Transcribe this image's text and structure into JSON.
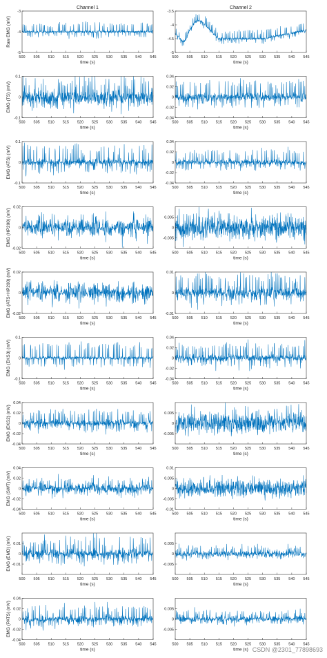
{
  "columns": [
    "Channel 1",
    "Channel 2"
  ],
  "watermark": "CSDN @2301_77898693",
  "style": {
    "signal_color": "#0072bd",
    "axis_color": "#333333",
    "text_color": "#222222"
  },
  "chart_data": [
    {
      "type": "line",
      "row": 0,
      "col": 0,
      "title": "Channel 1",
      "ylabel": "Raw EMG (mV)",
      "xlabel": "time (s)",
      "xlim": [
        500,
        545
      ],
      "ylim": [
        -5,
        -3
      ],
      "yticks": [
        -5,
        -4,
        -3
      ],
      "xticks": [
        500,
        505,
        510,
        515,
        520,
        525,
        530,
        535,
        540,
        545
      ],
      "signal": {
        "kind": "raw",
        "baseline": -4,
        "noise": 0.06,
        "spike": 0.35,
        "env": "flat",
        "spikes_per_sec": 1.9
      }
    },
    {
      "type": "line",
      "row": 0,
      "col": 1,
      "title": "Channel 2",
      "ylabel": "",
      "xlabel": "time (s)",
      "xlim": [
        500,
        545
      ],
      "ylim": [
        -5,
        -3.5
      ],
      "yticks": [
        -5,
        -4.5,
        -4,
        -3.5
      ],
      "xticks": [
        500,
        505,
        510,
        515,
        520,
        525,
        530,
        535,
        540,
        545
      ],
      "signal": {
        "kind": "raw2",
        "baseline": -4.5,
        "noise": 0.04,
        "spike": 0.25,
        "env": "flat",
        "spikes_per_sec": 1.9
      }
    },
    {
      "type": "line",
      "row": 1,
      "col": 0,
      "ylabel": "EMG (TS) (mV)",
      "xlabel": "time (s)",
      "xlim": [
        500,
        545
      ],
      "ylim": [
        -0.1,
        0.1
      ],
      "yticks": [
        -0.1,
        0,
        0.1
      ],
      "xticks": [
        500,
        505,
        510,
        515,
        520,
        525,
        530,
        535,
        540,
        545
      ],
      "signal": {
        "kind": "emg",
        "noise": 0.035,
        "spike": 0.07,
        "env": "flat",
        "spikes_per_sec": 1.9
      }
    },
    {
      "type": "line",
      "row": 1,
      "col": 1,
      "ylabel": "",
      "xlabel": "time (s)",
      "xlim": [
        500,
        545
      ],
      "ylim": [
        -0.04,
        0.04
      ],
      "yticks": [
        -0.04,
        -0.02,
        0,
        0.02,
        0.04
      ],
      "xticks": [
        500,
        505,
        510,
        515,
        520,
        525,
        530,
        535,
        540,
        545
      ],
      "signal": {
        "kind": "emg",
        "noise": 0.007,
        "spike": 0.025,
        "env": "flat",
        "spikes_per_sec": 1.9
      }
    },
    {
      "type": "line",
      "row": 2,
      "col": 0,
      "ylabel": "EMG (ATS) (mV)",
      "xlabel": "time (s)",
      "xlim": [
        500,
        545
      ],
      "ylim": [
        -0.1,
        0.1
      ],
      "yticks": [
        -0.1,
        0,
        0.1
      ],
      "xticks": [
        500,
        505,
        510,
        515,
        520,
        525,
        530,
        535,
        540,
        545
      ],
      "signal": {
        "kind": "emg",
        "noise": 0.025,
        "spike": 0.07,
        "env": "burst",
        "spikes_per_sec": 1.9
      }
    },
    {
      "type": "line",
      "row": 2,
      "col": 1,
      "ylabel": "",
      "xlabel": "time (s)",
      "xlim": [
        500,
        545
      ],
      "ylim": [
        -0.04,
        0.04
      ],
      "yticks": [
        -0.04,
        -0.02,
        0,
        0.02,
        0.04
      ],
      "xticks": [
        500,
        505,
        510,
        515,
        520,
        525,
        530,
        535,
        540,
        545
      ],
      "signal": {
        "kind": "emg",
        "noise": 0.005,
        "spike": 0.018,
        "env": "flat",
        "spikes_per_sec": 1.9
      }
    },
    {
      "type": "line",
      "row": 3,
      "col": 0,
      "ylabel": "EMG (HP200) (mV)",
      "xlabel": "time (s)",
      "xlim": [
        500,
        545
      ],
      "ylim": [
        -0.02,
        0.02
      ],
      "yticks": [
        -0.02,
        0,
        0.02
      ],
      "xticks": [
        500,
        505,
        510,
        515,
        520,
        525,
        530,
        535,
        540,
        545
      ],
      "signal": {
        "kind": "emg",
        "noise": 0.011,
        "spike": 0.004,
        "env": "burst",
        "spikes_per_sec": 1.9
      }
    },
    {
      "type": "line",
      "row": 3,
      "col": 1,
      "ylabel": "",
      "xlabel": "time (s)",
      "xlim": [
        500,
        545
      ],
      "ylim": [
        -0.01,
        0.01
      ],
      "yticks": [
        -0.005,
        0,
        0.005
      ],
      "xticks": [
        500,
        505,
        510,
        515,
        520,
        525,
        530,
        535,
        540,
        545
      ],
      "signal": {
        "kind": "emg",
        "noise": 0.0045,
        "spike": 0.004,
        "env": "flat",
        "spikes_per_sec": 1.9
      }
    },
    {
      "type": "line",
      "row": 4,
      "col": 0,
      "ylabel": "EMG (ATS+HP200) (mV)",
      "xlabel": "time (s)",
      "xlim": [
        500,
        545
      ],
      "ylim": [
        -0.02,
        0.02
      ],
      "yticks": [
        -0.02,
        0,
        0.02
      ],
      "xticks": [
        500,
        505,
        510,
        515,
        520,
        525,
        530,
        535,
        540,
        545
      ],
      "signal": {
        "kind": "emg",
        "noise": 0.011,
        "spike": 0.004,
        "env": "burst",
        "spikes_per_sec": 1.9
      }
    },
    {
      "type": "line",
      "row": 4,
      "col": 1,
      "ylabel": "",
      "xlabel": "time (s)",
      "xlim": [
        500,
        545
      ],
      "ylim": [
        -0.01,
        0.01
      ],
      "yticks": [
        -0.01,
        0,
        0.01
      ],
      "xticks": [
        500,
        505,
        510,
        515,
        520,
        525,
        530,
        535,
        540,
        545
      ],
      "signal": {
        "kind": "emg",
        "noise": 0.0025,
        "spike": 0.007,
        "env": "flat",
        "spikes_per_sec": 1.9
      }
    },
    {
      "type": "line",
      "row": 5,
      "col": 0,
      "ylabel": "EMG (EKS3) (mV)",
      "xlabel": "time (s)",
      "xlim": [
        500,
        545
      ],
      "ylim": [
        -0.1,
        0.1
      ],
      "yticks": [
        -0.1,
        0,
        0.1
      ],
      "xticks": [
        500,
        505,
        510,
        515,
        520,
        525,
        530,
        535,
        540,
        545
      ],
      "signal": {
        "kind": "emg",
        "noise": 0.007,
        "spike": 0.06,
        "env": "flat",
        "spikes_per_sec": 1.9
      }
    },
    {
      "type": "line",
      "row": 5,
      "col": 1,
      "ylabel": "",
      "xlabel": "time (s)",
      "xlim": [
        500,
        545
      ],
      "ylim": [
        -0.04,
        0.04
      ],
      "yticks": [
        -0.04,
        -0.02,
        0,
        0.02,
        0.04
      ],
      "xticks": [
        500,
        505,
        510,
        515,
        520,
        525,
        530,
        535,
        540,
        545
      ],
      "signal": {
        "kind": "emg",
        "noise": 0.006,
        "spike": 0.022,
        "env": "flat",
        "spikes_per_sec": 1.9
      }
    },
    {
      "type": "line",
      "row": 6,
      "col": 0,
      "ylabel": "EMG (EKS2) (mV)",
      "xlabel": "time (s)",
      "xlim": [
        500,
        545
      ],
      "ylim": [
        -0.04,
        0.04
      ],
      "yticks": [
        -0.04,
        -0.02,
        0,
        0.02,
        0.04
      ],
      "xticks": [
        500,
        505,
        510,
        515,
        520,
        525,
        530,
        535,
        540,
        545
      ],
      "signal": {
        "kind": "emg",
        "noise": 0.01,
        "spike": 0.02,
        "env": "burst",
        "spikes_per_sec": 1.9
      }
    },
    {
      "type": "line",
      "row": 6,
      "col": 1,
      "ylabel": "",
      "xlabel": "time (s)",
      "xlim": [
        500,
        545
      ],
      "ylim": [
        -0.01,
        0.01
      ],
      "yticks": [
        -0.005,
        0,
        0.005
      ],
      "xticks": [
        500,
        505,
        510,
        515,
        520,
        525,
        530,
        535,
        540,
        545
      ],
      "signal": {
        "kind": "emg",
        "noise": 0.004,
        "spike": 0.005,
        "env": "flat",
        "spikes_per_sec": 1.9
      }
    },
    {
      "type": "line",
      "row": 7,
      "col": 0,
      "ylabel": "EMG (SWT) (mV)",
      "xlabel": "time (s)",
      "xlim": [
        500,
        545
      ],
      "ylim": [
        -0.04,
        0.04
      ],
      "yticks": [
        -0.04,
        -0.02,
        0,
        0.02,
        0.04
      ],
      "xticks": [
        500,
        505,
        510,
        515,
        520,
        525,
        530,
        535,
        540,
        545
      ],
      "signal": {
        "kind": "emg",
        "noise": 0.012,
        "spike": 0.014,
        "env": "burst",
        "spikes_per_sec": 1.9
      }
    },
    {
      "type": "line",
      "row": 7,
      "col": 1,
      "ylabel": "",
      "xlabel": "time (s)",
      "xlim": [
        500,
        545
      ],
      "ylim": [
        -0.01,
        0.01
      ],
      "yticks": [
        -0.01,
        -0.005,
        0,
        0.005,
        0.01
      ],
      "xticks": [
        500,
        505,
        510,
        515,
        520,
        525,
        530,
        535,
        540,
        545
      ],
      "signal": {
        "kind": "emg",
        "noise": 0.0035,
        "spike": 0.003,
        "env": "flat",
        "spikes_per_sec": 1.9
      }
    },
    {
      "type": "line",
      "row": 8,
      "col": 0,
      "ylabel": "EMG (EMD) (mV)",
      "xlabel": "time (s)",
      "xlim": [
        500,
        545
      ],
      "ylim": [
        -0.02,
        0.02
      ],
      "yticks": [
        -0.01,
        0,
        0.01
      ],
      "xticks": [
        500,
        505,
        510,
        515,
        520,
        525,
        530,
        535,
        540,
        545
      ],
      "signal": {
        "kind": "emg",
        "noise": 0.006,
        "spike": 0.012,
        "env": "burst",
        "spikes_per_sec": 1.9
      }
    },
    {
      "type": "line",
      "row": 8,
      "col": 1,
      "ylabel": "",
      "xlabel": "time (s)",
      "xlim": [
        500,
        545
      ],
      "ylim": [
        -0.01,
        0.01
      ],
      "yticks": [
        -0.005,
        0,
        0.005
      ],
      "xticks": [
        500,
        505,
        510,
        515,
        520,
        525,
        530,
        535,
        540,
        545
      ],
      "signal": {
        "kind": "emg",
        "noise": 0.0012,
        "spike": 0.003,
        "env": "flat",
        "spikes_per_sec": 1.9
      }
    },
    {
      "type": "line",
      "row": 9,
      "col": 0,
      "ylabel": "EMG (PATS) (mV)",
      "xlabel": "time (s)",
      "xlim": [
        500,
        545
      ],
      "ylim": [
        -0.04,
        0.04
      ],
      "yticks": [
        -0.04,
        -0.02,
        0,
        0.02,
        0.04
      ],
      "xticks": [
        500,
        505,
        510,
        515,
        520,
        525,
        530,
        535,
        540,
        545
      ],
      "signal": {
        "kind": "emg",
        "noise": 0.01,
        "spike": 0.02,
        "env": "burst",
        "spikes_per_sec": 1.9
      }
    },
    {
      "type": "line",
      "row": 9,
      "col": 1,
      "ylabel": "",
      "xlabel": "time (s)",
      "xlim": [
        500,
        545
      ],
      "ylim": [
        -0.01,
        0.01
      ],
      "yticks": [
        -0.005,
        0,
        0.005
      ],
      "xticks": [
        500,
        505,
        510,
        515,
        520,
        525,
        530,
        535,
        540,
        545
      ],
      "signal": {
        "kind": "emg",
        "noise": 0.002,
        "spike": 0.003,
        "env": "burst",
        "spikes_per_sec": 1.9
      }
    }
  ]
}
